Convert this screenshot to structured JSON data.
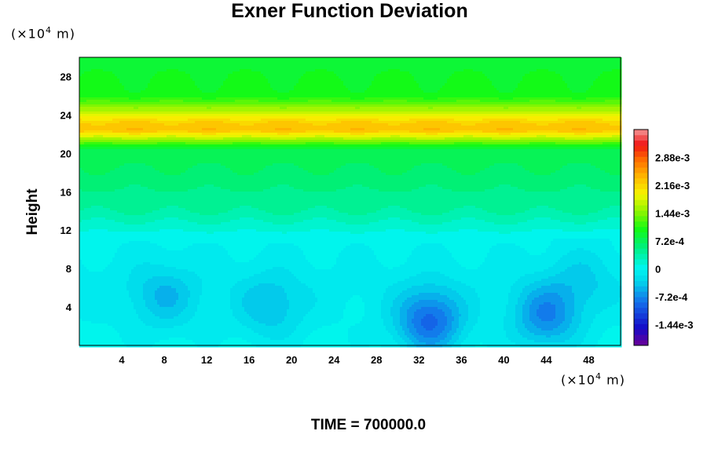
{
  "chart_data": {
    "type": "heatmap",
    "title": "Exner Function Deviation",
    "ylabel": "Height",
    "y_unit": "(×10",
    "x_unit": "(×10",
    "unit_exponent": "4",
    "unit_suffix": " m)",
    "footer": "TIME = 700000.0",
    "x_ticks": [
      "4",
      "8",
      "12",
      "16",
      "20",
      "24",
      "28",
      "32",
      "36",
      "40",
      "44",
      "48"
    ],
    "y_ticks": [
      "4",
      "8",
      "12",
      "16",
      "20",
      "24",
      "28"
    ],
    "xlim": [
      0,
      51
    ],
    "ylim": [
      0,
      30
    ],
    "colorbar": {
      "labels": [
        "2.88e-3",
        "2.16e-3",
        "1.44e-3",
        "7.2e-4",
        "0",
        "-7.2e-4",
        "-1.44e-3"
      ],
      "label_values": [
        0.00288,
        0.00216,
        0.00144,
        0.00072,
        0,
        -0.00072,
        -0.00144
      ],
      "range": [
        -0.00198,
        0.0036
      ]
    },
    "vertical_profile": [
      {
        "height": 0,
        "value": 2e-05
      },
      {
        "height": 6,
        "value": -8e-05
      },
      {
        "height": 11,
        "value": 0.0
      },
      {
        "height": 14,
        "value": 0.0004
      },
      {
        "height": 18,
        "value": 0.00064
      },
      {
        "height": 20.5,
        "value": 0.0008
      },
      {
        "height": 21.5,
        "value": 0.0016
      },
      {
        "height": 22.4,
        "value": 0.00232
      },
      {
        "height": 23.2,
        "value": 0.00222
      },
      {
        "height": 24.5,
        "value": 0.0016
      },
      {
        "height": 26,
        "value": 0.001
      },
      {
        "height": 30,
        "value": 0.0009
      }
    ],
    "anomalies": [
      {
        "x": 8,
        "y": 5,
        "value": -0.0004
      },
      {
        "x": 18,
        "y": 4,
        "value": -0.0004
      },
      {
        "x": 33,
        "y": 2.5,
        "value": -0.0009
      },
      {
        "x": 44,
        "y": 3,
        "value": -0.0007
      },
      {
        "x": 47.5,
        "y": 7,
        "value": -0.00025
      }
    ]
  }
}
